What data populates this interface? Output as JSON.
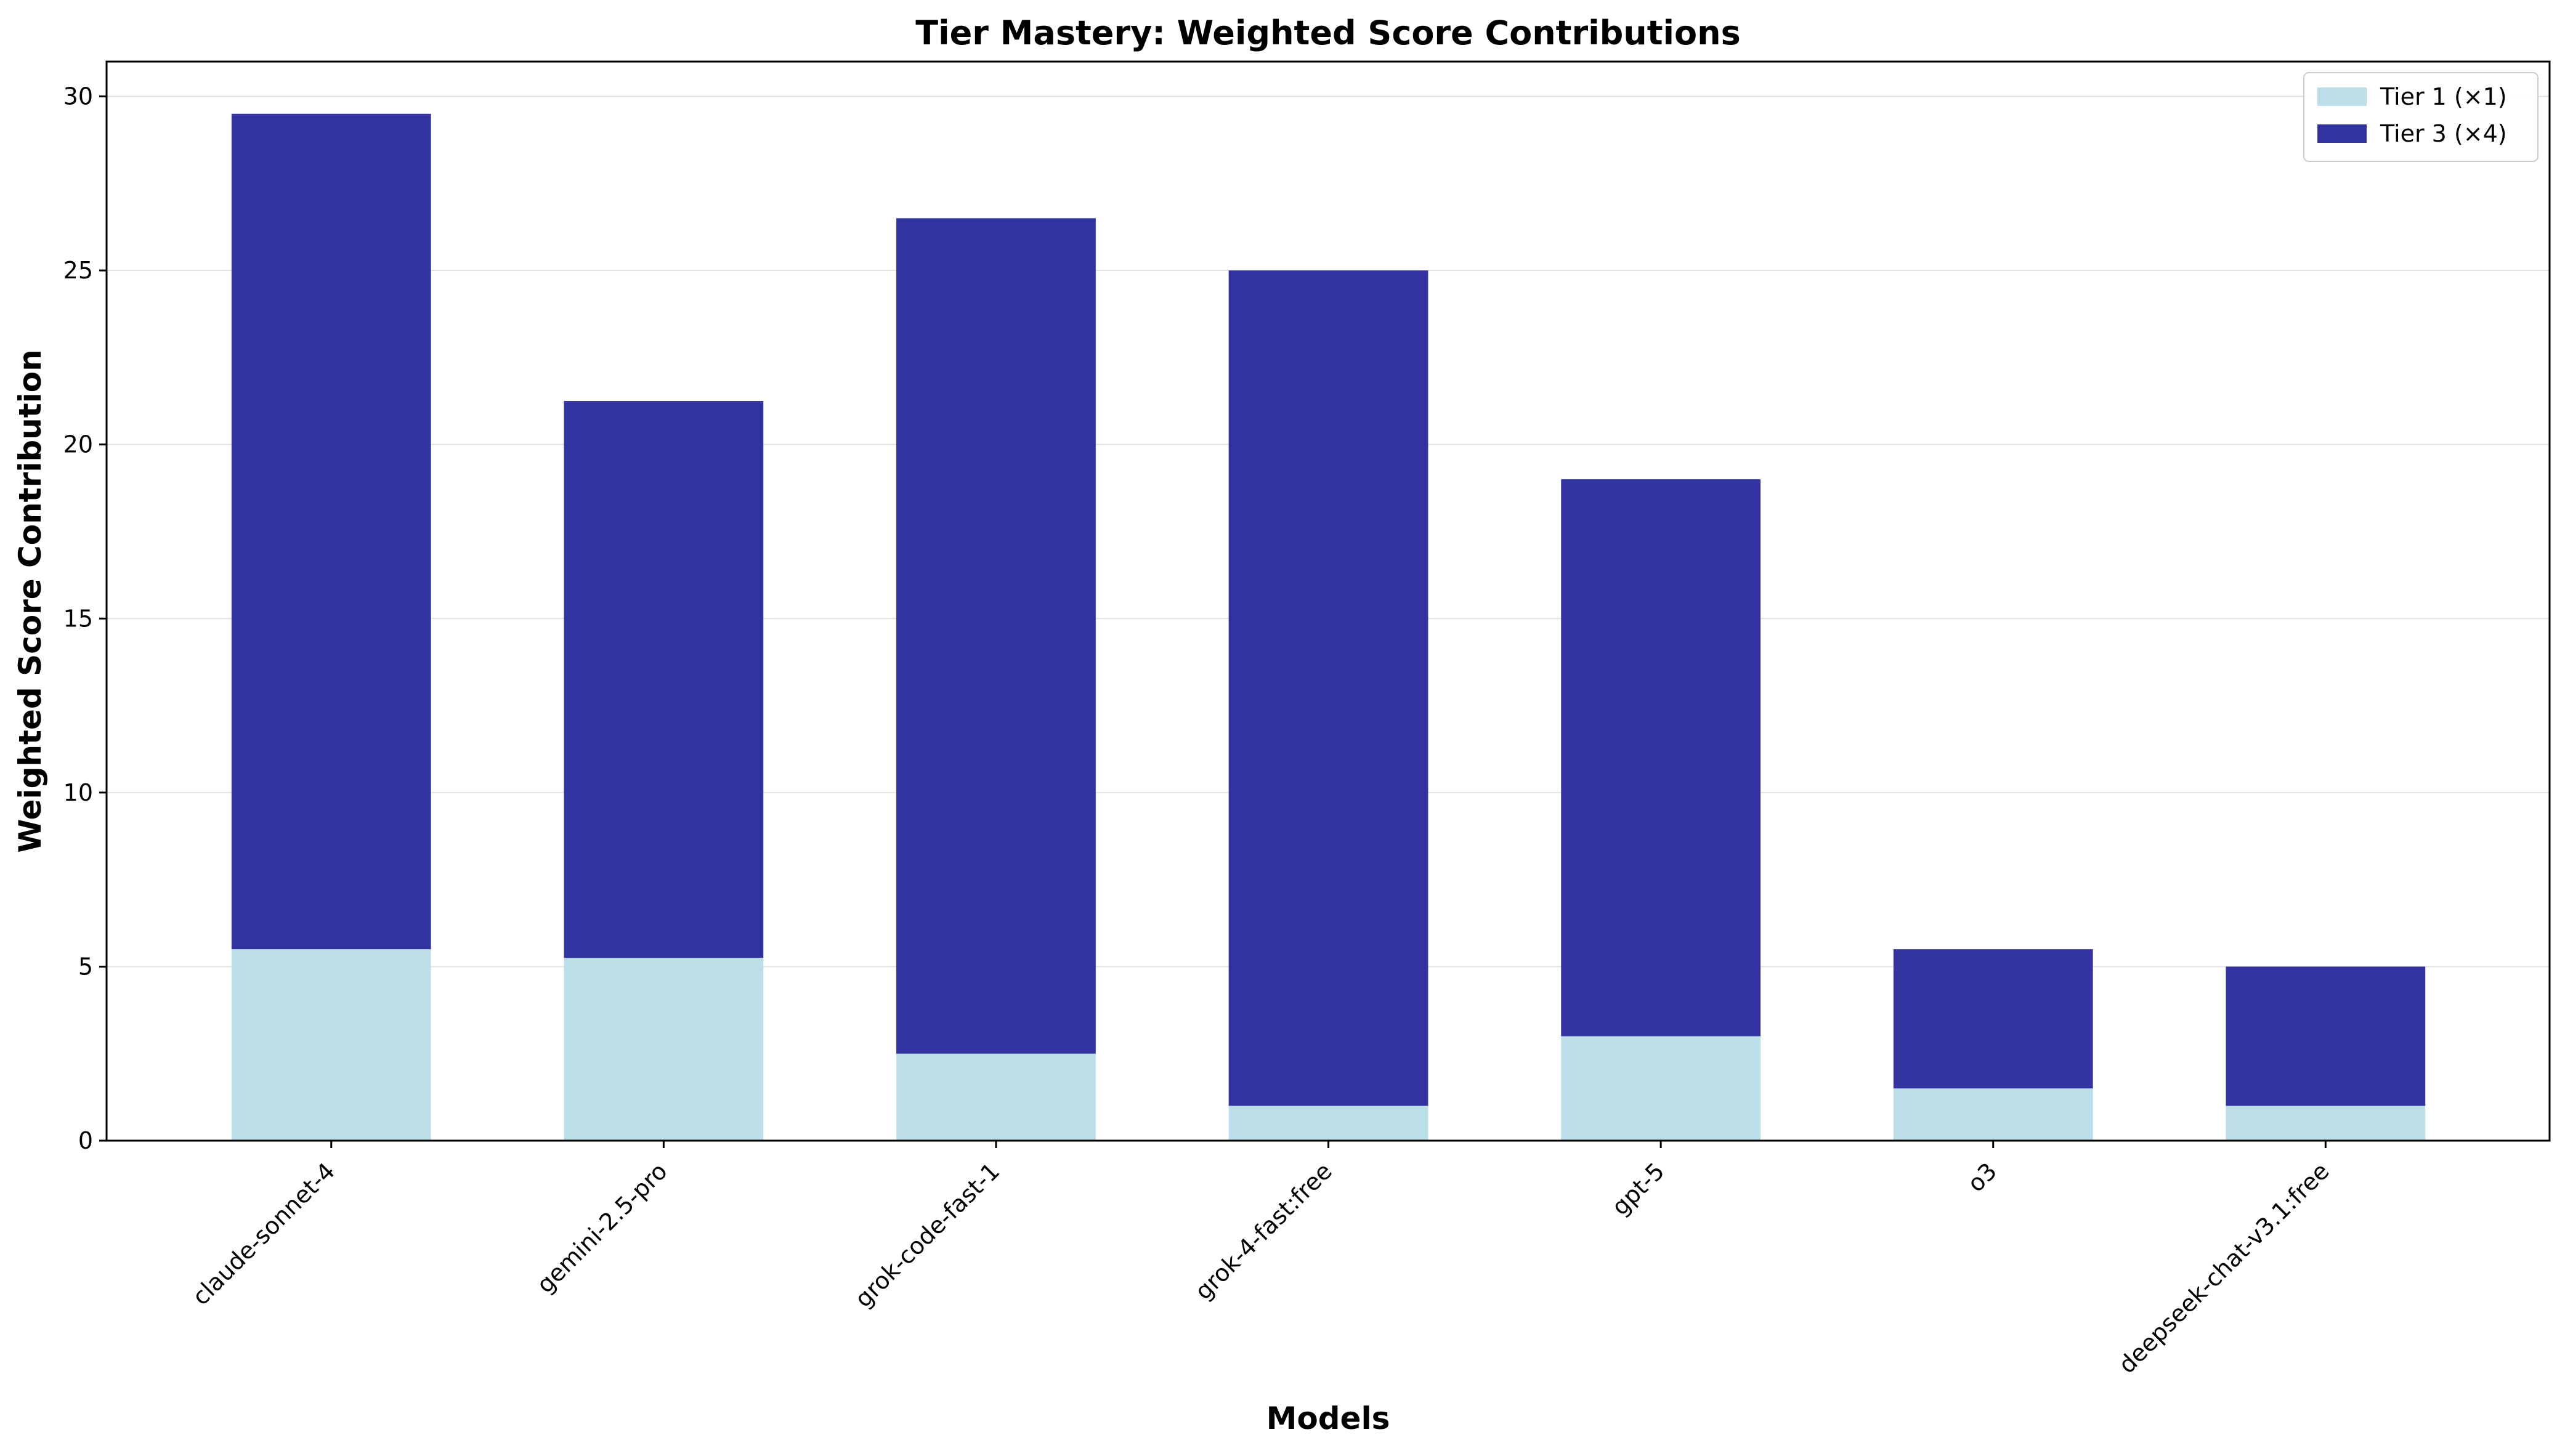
{
  "chart_data": {
    "type": "bar",
    "stacked": true,
    "title": "Tier Mastery: Weighted Score Contributions",
    "xlabel": "Models",
    "ylabel": "Weighted Score Contribution",
    "categories": [
      "claude-sonnet-4",
      "gemini-2.5-pro",
      "grok-code-fast-1",
      "grok-4-fast:free",
      "gpt-5",
      "o3",
      "deepseek-chat-v3.1:free"
    ],
    "series": [
      {
        "name": "Tier 1 (×1)",
        "color": "#bcdee8",
        "values": [
          5.5,
          5.25,
          2.5,
          1.0,
          3.0,
          1.5,
          1.0
        ]
      },
      {
        "name": "Tier 3 (×4)",
        "color": "#3333a0",
        "values": [
          24.0,
          16.0,
          24.0,
          24.0,
          16.0,
          4.0,
          4.0
        ]
      }
    ],
    "ylim": [
      0,
      31
    ],
    "yticks": [
      0,
      5,
      10,
      15,
      20,
      25,
      30
    ],
    "grid": "y",
    "legend_position": "top-right"
  }
}
